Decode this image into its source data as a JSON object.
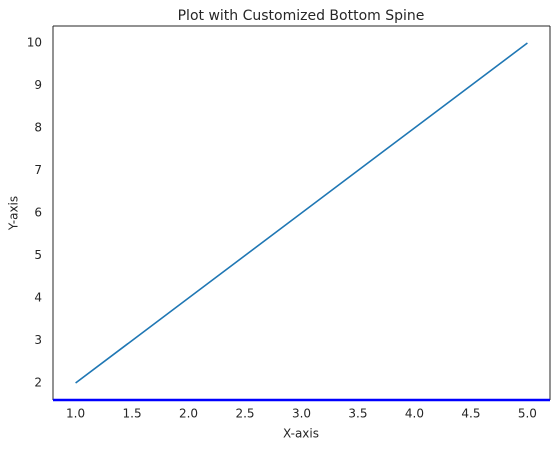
{
  "chart_data": {
    "type": "line",
    "title": "Plot with Customized Bottom Spine",
    "x_label": "X-axis",
    "y_label": "Y-axis",
    "x": [
      1,
      2,
      3,
      4,
      5
    ],
    "series": [
      {
        "color": "#1f77b4",
        "values": [
          2,
          4,
          6,
          8,
          10
        ]
      }
    ],
    "xlim": [
      0.8,
      5.2
    ],
    "xticks": [
      {
        "value": 1,
        "label": "1.0"
      },
      1.5,
      {
        "value": 2,
        "label": "2.0"
      },
      2.5,
      {
        "value": 3,
        "label": "3.0"
      },
      3.5,
      {
        "value": 4,
        "label": "4.0"
      },
      4.5,
      {
        "value": 5,
        "label": "5.0"
      }
    ],
    "ylim": [
      1.6,
      10.4
    ],
    "yticks": [
      2,
      3,
      4,
      5,
      6,
      7,
      8,
      9,
      10
    ],
    "grid": false,
    "spine_color": "#262626",
    "bottom_spine_color": "blue"
  }
}
